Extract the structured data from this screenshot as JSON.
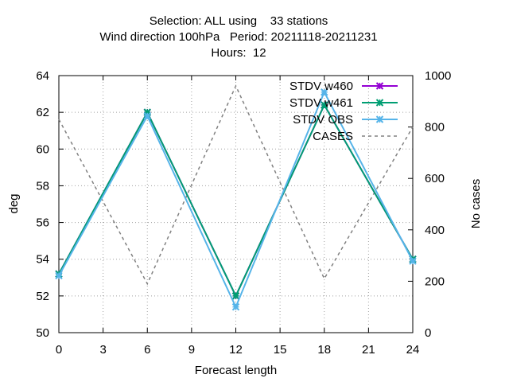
{
  "chart_data": {
    "type": "line",
    "title": [
      "Selection: ALL using    33 stations",
      "Wind direction 100hPa   Period: 20211118-20211231",
      "Hours:  12"
    ],
    "xlabel": "Forecast length",
    "ylabel": "deg",
    "y2label": "No cases",
    "xlim": [
      0,
      24
    ],
    "ylim": [
      50,
      64
    ],
    "y2lim": [
      0,
      1000
    ],
    "xticks": [
      "0",
      "3",
      "6",
      "9",
      "12",
      "15",
      "18",
      "21",
      "24"
    ],
    "yticks": [
      "50",
      "52",
      "54",
      "56",
      "58",
      "60",
      "62",
      "64"
    ],
    "y2ticks": [
      "0",
      "200",
      "400",
      "600",
      "800",
      "1000"
    ],
    "grid": true,
    "legend_position": "top-right",
    "x": [
      0,
      6,
      12,
      18,
      24
    ],
    "series": [
      {
        "name": "STDV w460",
        "axis": "left",
        "color": "#9400d3",
        "marker": "x",
        "values": [
          53.2,
          62.0,
          52.0,
          62.4,
          54.0
        ]
      },
      {
        "name": "STDV w461",
        "axis": "left",
        "color": "#009e73",
        "marker": "x",
        "values": [
          53.2,
          62.0,
          52.0,
          62.4,
          54.0
        ]
      },
      {
        "name": "STDV OBS",
        "axis": "left",
        "color": "#56b4e9",
        "marker": "x",
        "values": [
          53.1,
          61.8,
          51.4,
          63.1,
          53.9
        ]
      },
      {
        "name": "CASES",
        "axis": "right",
        "color": "#808080",
        "marker": "none",
        "dashed": true,
        "values": [
          830,
          190,
          960,
          210,
          800
        ]
      }
    ]
  }
}
